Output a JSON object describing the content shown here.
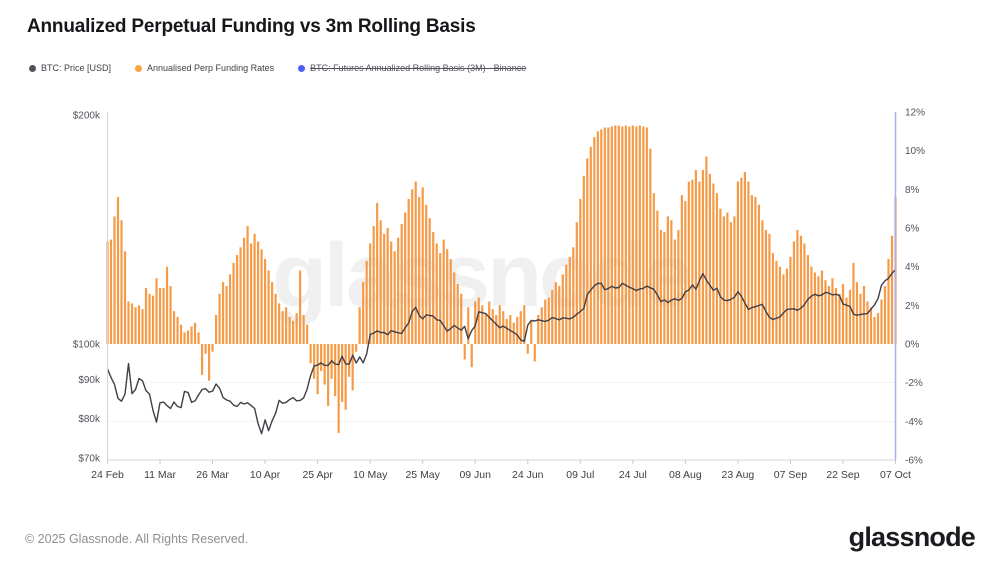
{
  "page": {
    "title": "Annualized Perpetual Funding vs 3m Rolling Basis",
    "watermark": "glassnode",
    "footer_copyright": "© 2025 Glassnode. All Rights Reserved.",
    "brand_logo": "glassnode"
  },
  "legend": {
    "items": [
      {
        "label": "BTC: Price [USD]",
        "color": "#52525b",
        "disabled": false
      },
      {
        "label": "Annualised Perp Funding Rates",
        "color": "#f7a244",
        "disabled": false
      },
      {
        "label": "BTC: Futures Annualized Rolling Basis (3M) - Binance",
        "color": "#4f5ef7",
        "disabled": true
      }
    ]
  },
  "colors": {
    "bar": "#f59b47",
    "price_line": "#3f3f46",
    "axis_line": "#d4d4d8",
    "tick_mark": "#c9c9ce",
    "grid_line": "#f2f2f3",
    "right_axis_line": "#a9b1f5",
    "axis_label": "#52525b",
    "x_label": "#3f3f46"
  },
  "chart_data": {
    "type": "bar",
    "subtype": "bar+line dual-axis, daily values",
    "title": "Annualized Perpetual Funding vs 3m Rolling Basis",
    "x": {
      "total_days": 225,
      "tick_days": [
        0,
        15,
        30,
        45,
        60,
        75,
        90,
        105,
        120,
        135,
        150,
        165,
        180,
        195,
        210,
        225
      ],
      "tick_labels": [
        "24 Feb",
        "11 Mar",
        "26 Mar",
        "10 Apr",
        "25 Apr",
        "10 May",
        "25 May",
        "09 Jun",
        "24 Jun",
        "09 Jul",
        "24 Jul",
        "08 Aug",
        "23 Aug",
        "07 Sep",
        "22 Sep",
        "07 Oct"
      ]
    },
    "y_left": {
      "axis_title": "BTC: Price [USD]",
      "scale": "log",
      "tick_labels": [
        "$200k",
        "$100k",
        "$90k",
        "$80k",
        "$70k"
      ],
      "tick_values_k": [
        200,
        100,
        90,
        80,
        70
      ],
      "alignment": "$100k aligns with 0%, $200k aligns with 12%"
    },
    "y_right": {
      "axis_title": "Annualised Perp Funding Rate",
      "scale": "linear",
      "min": -6,
      "max": 12,
      "tick_step": 2,
      "tick_values": [
        12,
        10,
        8,
        6,
        4,
        2,
        0,
        -2,
        -4,
        -6
      ],
      "tick_labels": [
        "12%",
        "10%",
        "8%",
        "6%",
        "4%",
        "2%",
        "0%",
        "-2%",
        "-4%",
        "-6%"
      ],
      "gridline_values": [
        -2,
        -4
      ]
    },
    "series": [
      {
        "name": "Annualised Perp Funding Rates",
        "type": "bar",
        "axis": "right",
        "unit": "%",
        "color": "#f59b47",
        "values": [
          5.3,
          5.4,
          6.6,
          7.6,
          6.4,
          4.8,
          2.2,
          2.1,
          1.9,
          2.0,
          1.8,
          2.9,
          2.6,
          2.5,
          3.4,
          2.9,
          2.9,
          4.0,
          3.0,
          1.7,
          1.4,
          1.0,
          0.6,
          0.7,
          0.9,
          1.1,
          0.6,
          -1.6,
          -0.5,
          -1.9,
          -0.4,
          1.5,
          2.6,
          3.2,
          3.0,
          3.6,
          4.2,
          4.6,
          5.0,
          5.5,
          6.1,
          5.2,
          5.7,
          5.3,
          4.9,
          4.4,
          3.8,
          3.2,
          2.6,
          2.1,
          1.7,
          1.9,
          1.4,
          1.2,
          1.6,
          3.8,
          1.5,
          1.0,
          -1.0,
          -1.8,
          -2.6,
          -1.4,
          -2.1,
          -3.2,
          -1.8,
          -2.7,
          -4.6,
          -3.0,
          -3.4,
          -1.7,
          -2.4,
          -0.4,
          1.9,
          3.2,
          4.3,
          5.2,
          6.1,
          7.3,
          6.4,
          5.7,
          6.0,
          5.3,
          4.8,
          5.5,
          6.2,
          6.8,
          7.5,
          8.0,
          8.4,
          7.6,
          8.1,
          7.2,
          6.5,
          5.8,
          5.2,
          4.7,
          5.4,
          4.9,
          4.4,
          3.7,
          3.1,
          2.6,
          -0.8,
          1.9,
          -1.2,
          2.2,
          2.4,
          2.0,
          1.6,
          2.2,
          1.8,
          1.5,
          2.0,
          1.7,
          1.3,
          1.5,
          1.1,
          1.4,
          1.7,
          2.0,
          -0.5,
          1.2,
          -0.9,
          1.5,
          1.9,
          2.3,
          2.4,
          2.8,
          3.2,
          3.0,
          3.6,
          4.1,
          4.5,
          5.0,
          6.3,
          7.5,
          8.7,
          9.6,
          10.2,
          10.7,
          11.0,
          11.1,
          11.2,
          11.2,
          11.25,
          11.3,
          11.3,
          11.25,
          11.3,
          11.25,
          11.3,
          11.25,
          11.3,
          11.25,
          11.2,
          10.1,
          7.8,
          6.9,
          5.9,
          5.8,
          6.6,
          6.4,
          5.4,
          5.9,
          7.7,
          7.4,
          8.4,
          8.5,
          9.0,
          8.4,
          9.0,
          9.7,
          8.8,
          8.3,
          7.8,
          7.0,
          6.6,
          6.8,
          6.3,
          6.6,
          8.4,
          8.6,
          8.9,
          8.4,
          7.7,
          7.6,
          7.2,
          6.4,
          5.9,
          5.7,
          4.7,
          4.3,
          4.0,
          3.6,
          3.9,
          4.5,
          5.3,
          5.9,
          5.6,
          5.2,
          4.6,
          4.0,
          3.7,
          3.5,
          3.8,
          3.3,
          3.0,
          3.4,
          2.9,
          2.6,
          3.1,
          2.4,
          2.8,
          4.2,
          3.2,
          2.6,
          3.0,
          2.2,
          1.9,
          1.4,
          1.6,
          2.3,
          3.0,
          4.4,
          5.6,
          7.6
        ]
      },
      {
        "name": "BTC: Price [USD]",
        "type": "line",
        "axis": "left",
        "unit": "USD thousands",
        "color": "#3f3f46",
        "values": [
          92.8,
          90.5,
          88.6,
          85.0,
          84.3,
          86.1,
          94.3,
          86.2,
          87.3,
          90.2,
          89.6,
          87.0,
          86.1,
          82.0,
          79.2,
          83.9,
          84.1,
          83.2,
          82.5,
          84.1,
          83.0,
          82.7,
          86.8,
          86.5,
          84.0,
          84.4,
          85.9,
          87.3,
          87.5,
          86.6,
          86.9,
          88.7,
          87.6,
          85.2,
          84.6,
          84.3,
          83.3,
          83.0,
          84.0,
          83.6,
          83.9,
          83.2,
          82.5,
          78.8,
          76.5,
          79.7,
          77.2,
          79.5,
          81.3,
          84.5,
          83.8,
          84.0,
          84.7,
          85.2,
          84.4,
          84.5,
          85.1,
          87.4,
          91.0,
          93.6,
          93.9,
          94.5,
          93.8,
          93.8,
          95.1,
          94.2,
          94.0,
          96.4,
          94.2,
          94.2,
          96.7,
          94.5,
          96.2,
          94.5,
          97.1,
          102.9,
          103.3,
          104.0,
          103.5,
          103.5,
          102.8,
          104.1,
          103.7,
          103.4,
          103.2,
          105.0,
          106.5,
          110.2,
          111.6,
          108.9,
          107.8,
          109.1,
          108.9,
          108.7,
          107.5,
          107.3,
          105.6,
          103.9,
          104.7,
          105.7,
          104.9,
          104.2,
          105.4,
          101.6,
          104.1,
          105.5,
          110.1,
          109.8,
          109.5,
          108.3,
          107.2,
          106.1,
          105.0,
          105.5,
          104.8,
          104.1,
          103.5,
          102.7,
          101.2,
          100.8,
          105.8,
          107.3,
          107.1,
          107.5,
          107.2,
          107.0,
          107.4,
          108.2,
          107.9,
          107.5,
          108.1,
          108.0,
          107.8,
          108.3,
          109.3,
          110.2,
          111.2,
          115.9,
          117.5,
          119.0,
          119.9,
          119.8,
          117.6,
          118.0,
          118.8,
          118.2,
          118.4,
          119.9,
          119.2,
          118.5,
          118.0,
          117.3,
          117.9,
          118.1,
          118.9,
          118.3,
          117.8,
          115.8,
          113.5,
          114.1,
          113.2,
          114.0,
          114.5,
          113.9,
          114.6,
          116.9,
          117.5,
          119.3,
          117.8,
          120.8,
          123.4,
          121.0,
          119.2,
          117.4,
          118.1,
          115.2,
          114.0,
          113.8,
          114.3,
          115.0,
          116.9,
          115.3,
          113.0,
          110.9,
          111.5,
          111.8,
          112.2,
          112.6,
          110.2,
          108.3,
          107.6,
          108.0,
          108.4,
          109.7,
          110.9,
          111.0,
          111.1,
          110.6,
          111.3,
          112.5,
          114.3,
          115.4,
          116.0,
          115.5,
          115.8,
          116.7,
          116.4,
          115.8,
          116.0,
          115.6,
          112.7,
          112.3,
          111.9,
          109.3,
          109.0,
          109.2,
          109.4,
          109.5,
          111.0,
          112.4,
          114.5,
          119.2,
          120.8,
          121.7,
          123.5,
          124.9
        ]
      }
    ]
  }
}
